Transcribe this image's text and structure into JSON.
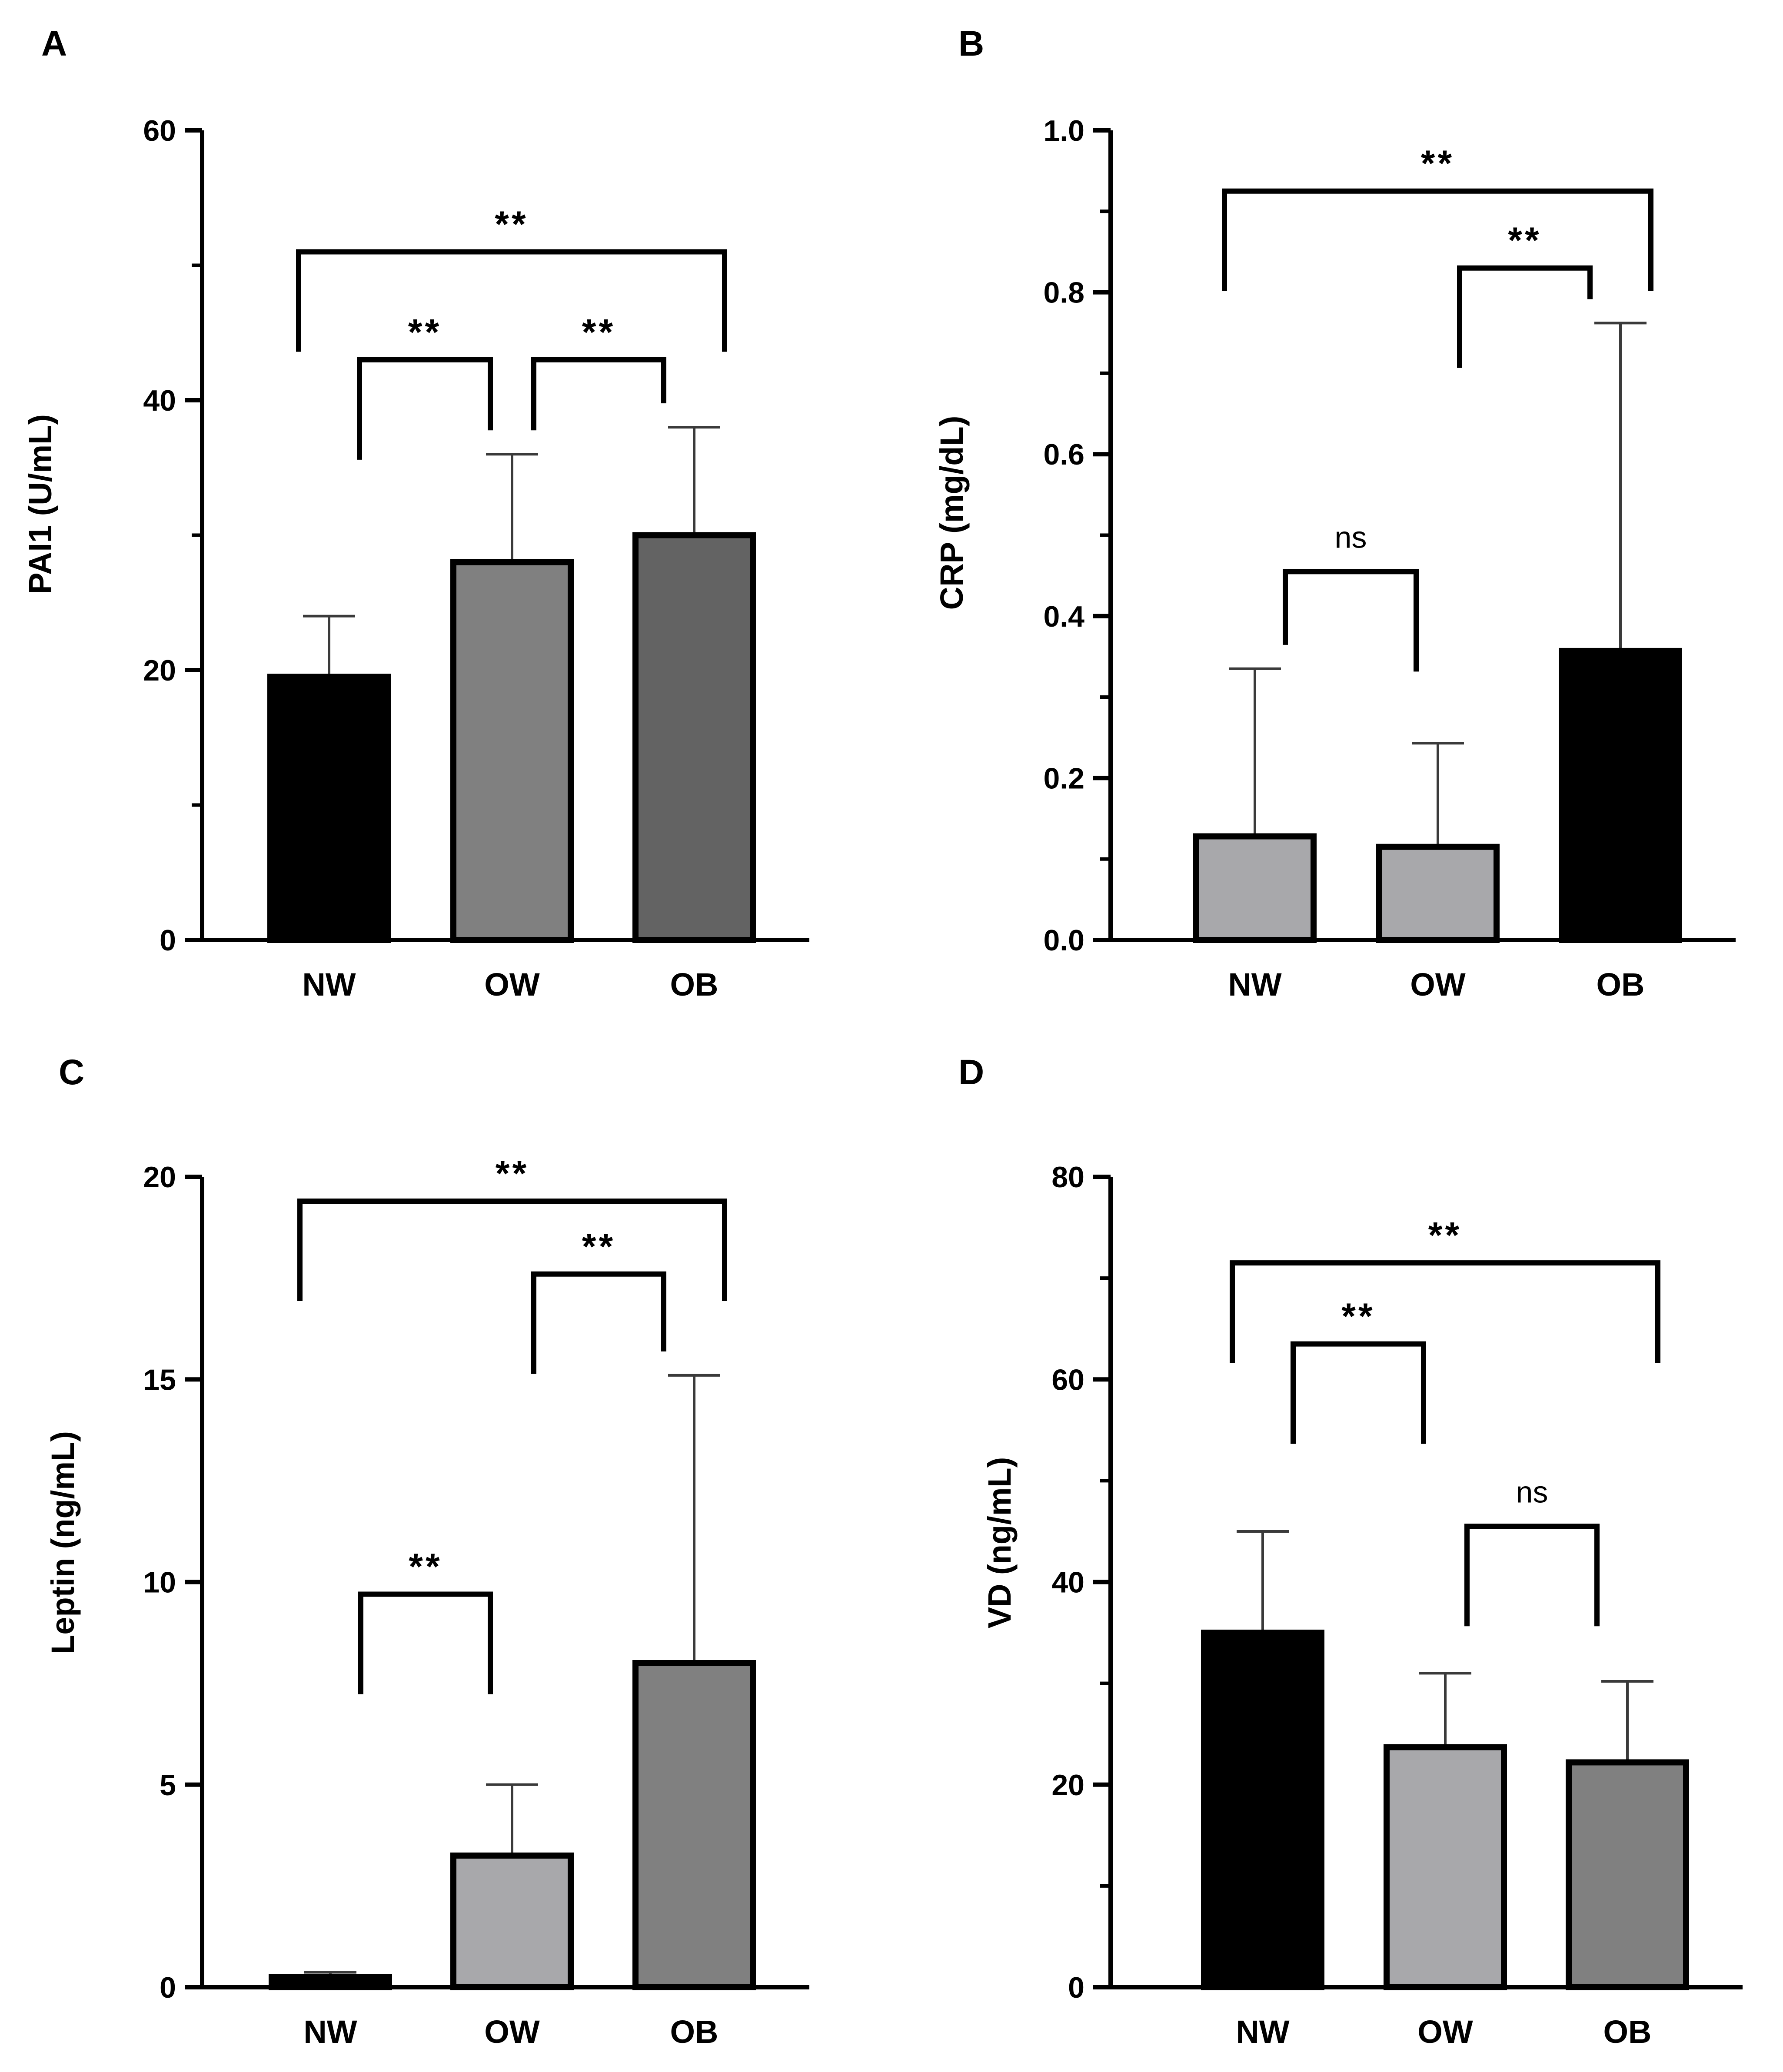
{
  "chart_data": [
    {
      "panel": "A",
      "type": "bar",
      "title": "",
      "xlabel": "",
      "ylabel": "PAI1 (U/mL)",
      "categories": [
        "NW",
        "OW",
        "OB"
      ],
      "values": [
        19.5,
        28,
        30
      ],
      "errors": [
        4.5,
        8,
        8
      ],
      "colors": [
        "#000000",
        "#808080",
        "#636363"
      ],
      "ylim": [
        0,
        60
      ],
      "yticks": [
        0,
        20,
        40,
        60
      ],
      "ytick_labels": [
        "0",
        "20",
        "40",
        "60"
      ],
      "minor_yticks": [
        10,
        30,
        50
      ],
      "comparisons": [
        {
          "from": 0,
          "to": 1,
          "label": "**",
          "bracket_y": 43
        },
        {
          "from": 1,
          "to": 2,
          "label": "**",
          "bracket_y": 43
        },
        {
          "from": 0,
          "to": 2,
          "label": "**",
          "bracket_y": 51
        }
      ]
    },
    {
      "panel": "B",
      "type": "bar",
      "title": "",
      "xlabel": "",
      "ylabel": "CRP (mg/dL)",
      "categories": [
        "NW",
        "OW",
        "OB"
      ],
      "values": [
        0.128,
        0.115,
        0.357
      ],
      "errors": [
        0.207,
        0.128,
        0.405
      ],
      "colors": [
        "#a8a8ab",
        "#a8a8ab",
        "#000000"
      ],
      "ylim": [
        0,
        1.0
      ],
      "yticks": [
        0,
        0.2,
        0.4,
        0.6,
        0.8,
        1.0
      ],
      "ytick_labels": [
        "0.0",
        "0.2",
        "0.4",
        "0.6",
        "0.8",
        "1.0"
      ],
      "minor_yticks": [
        0.1,
        0.3,
        0.5,
        0.7,
        0.9
      ],
      "comparisons": [
        {
          "from": 0,
          "to": 1,
          "label": "ns",
          "bracket_y": 0.455
        },
        {
          "from": 1,
          "to": 2,
          "label": "**",
          "bracket_y": 0.83
        },
        {
          "from": 0,
          "to": 2,
          "label": "**",
          "bracket_y": 0.925
        }
      ]
    },
    {
      "panel": "C",
      "type": "bar",
      "title": "",
      "xlabel": "",
      "ylabel": "Leptin (ng/mL)",
      "categories": [
        "NW",
        "OW",
        "OB"
      ],
      "values": [
        0.25,
        3.25,
        8.0
      ],
      "errors": [
        0.12,
        1.75,
        7.1
      ],
      "colors": [
        "#000000",
        "#a8a8ab",
        "#808080"
      ],
      "ylim": [
        0,
        20
      ],
      "yticks": [
        0,
        5,
        10,
        15,
        20
      ],
      "ytick_labels": [
        "0",
        "5",
        "10",
        "15",
        "20"
      ],
      "minor_yticks": [],
      "comparisons": [
        {
          "from": 0,
          "to": 1,
          "label": "**",
          "bracket_y": 9.7
        },
        {
          "from": 1,
          "to": 2,
          "label": "**",
          "bracket_y": 17.6
        },
        {
          "from": 0,
          "to": 2,
          "label": "**",
          "bracket_y": 19.4
        }
      ]
    },
    {
      "panel": "D",
      "type": "bar",
      "title": "",
      "xlabel": "",
      "ylabel": "VD (ng/mL)",
      "categories": [
        "NW",
        "OW",
        "OB"
      ],
      "values": [
        35,
        23.7,
        22.2
      ],
      "errors": [
        10,
        7.3,
        8
      ],
      "colors": [
        "#000000",
        "#a8a8ab",
        "#808080"
      ],
      "ylim": [
        0,
        80
      ],
      "yticks": [
        0,
        20,
        40,
        60,
        80
      ],
      "ytick_labels": [
        "0",
        "20",
        "40",
        "60",
        "80"
      ],
      "minor_yticks": [
        10,
        30,
        50,
        70
      ],
      "comparisons": [
        {
          "from": 0,
          "to": 1,
          "label": "**",
          "bracket_y": 63.5
        },
        {
          "from": 1,
          "to": 2,
          "label": "ns",
          "bracket_y": 45.5
        },
        {
          "from": 0,
          "to": 2,
          "label": "**",
          "bracket_y": 71.5
        }
      ]
    }
  ]
}
